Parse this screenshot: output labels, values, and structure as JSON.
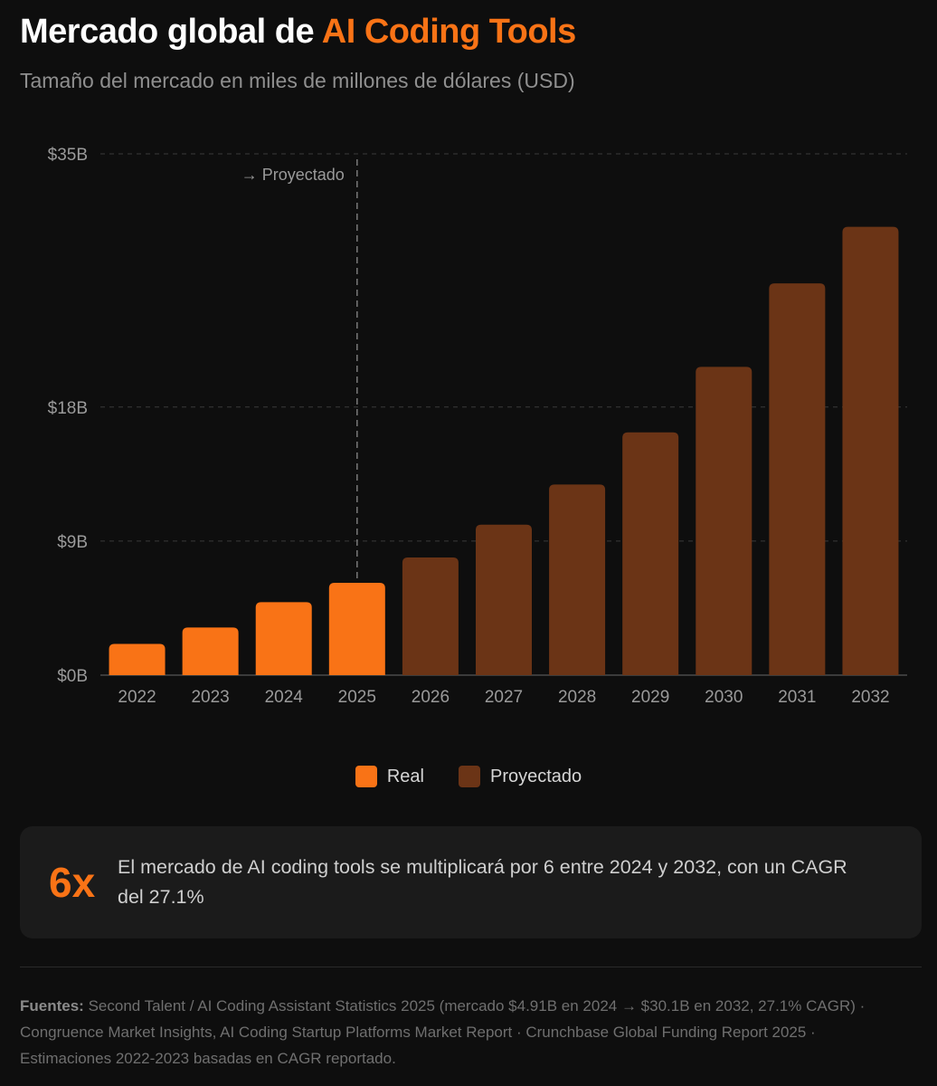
{
  "title": {
    "prefix": "Mercado global de ",
    "highlight": "AI Coding Tools"
  },
  "subtitle": "Tamaño del mercado en miles de millones de dólares (USD)",
  "chart_data": {
    "type": "bar",
    "title": "Mercado global de AI Coding Tools",
    "subtitle": "Tamaño del mercado en miles de millones de dólares (USD)",
    "xlabel": "",
    "ylabel": "",
    "ylim": [
      0,
      35
    ],
    "yticks": [
      {
        "value": 0,
        "label": "$0B"
      },
      {
        "value": 9,
        "label": "$9B"
      },
      {
        "value": 18,
        "label": "$18B"
      },
      {
        "value": 35,
        "label": "$35B"
      }
    ],
    "categories": [
      "2022",
      "2023",
      "2024",
      "2025",
      "2026",
      "2027",
      "2028",
      "2029",
      "2030",
      "2031",
      "2032"
    ],
    "values": [
      2.1,
      3.2,
      4.9,
      6.2,
      7.9,
      10.1,
      12.8,
      16.3,
      20.7,
      26.3,
      30.1
    ],
    "kinds": [
      "real",
      "real",
      "real",
      "real",
      "proj",
      "proj",
      "proj",
      "proj",
      "proj",
      "proj",
      "proj"
    ],
    "projection_marker": {
      "label": "→ Proyectado",
      "after_category": "2025"
    },
    "legend": [
      {
        "key": "real",
        "label": "Real",
        "color": "#f97316"
      },
      {
        "key": "proj",
        "label": "Proyectado",
        "color": "#6b3416"
      }
    ]
  },
  "colors": {
    "accent": "#f97316",
    "projected": "#6b3416",
    "grid": "#3a3a3a",
    "axis_text": "#9a9a9a"
  },
  "callout": {
    "big": "6x",
    "text": "El mercado de AI coding tools se multiplicará por 6 entre 2024 y 2032, con un CAGR del 27.1%"
  },
  "sources": {
    "label": "Fuentes:",
    "text": " Second Talent / AI Coding Assistant Statistics 2025 (mercado $4.91B en 2024 → $30.1B en 2032, 27.1% CAGR) · Congruence Market Insights, AI Coding Startup Platforms Market Report · Crunchbase Global Funding Report 2025 · Estimaciones 2022-2023 basadas en CAGR reportado."
  }
}
